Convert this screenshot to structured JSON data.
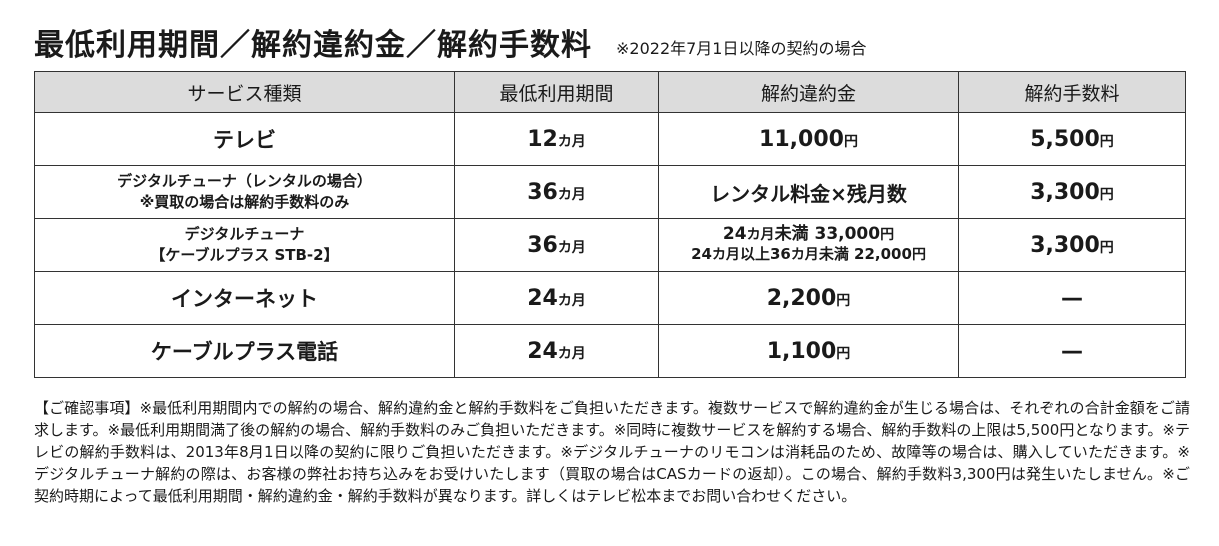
{
  "title": "最低利用期間／解約違約金／解約手数料",
  "note": "※2022年7月1日以降の契約の場合",
  "headers": [
    "サービス種類",
    "最低利用期間",
    "解約違約金",
    "解約手数料"
  ],
  "rows": [
    {
      "service": "テレビ",
      "period_num": "12",
      "period_unit": "カ月",
      "penalty_num": "11,000",
      "penalty_unit": "円",
      "fee_num": "5,500",
      "fee_unit": "円"
    },
    {
      "service_line1": "デジタルチューナ（レンタルの場合）",
      "service_line2": "※買取の場合は解約手数料のみ",
      "period_num": "36",
      "period_unit": "カ月",
      "penalty_text": "レンタル料金×残月数",
      "fee_num": "3,300",
      "fee_unit": "円"
    },
    {
      "service_line1": "デジタルチューナ",
      "service_line2": "【ケーブルプラス STB-2】",
      "period_num": "36",
      "period_unit": "カ月",
      "penalty_l1_prefix": "24",
      "penalty_l1_unit": "カ月",
      "penalty_l1_mid": "未満 ",
      "penalty_l1_num": "33,000",
      "penalty_l1_yen": "円",
      "penalty_l2_a": "24",
      "penalty_l2_unit1": "カ月",
      "penalty_l2_mid": "以上36",
      "penalty_l2_unit2": "カ月",
      "penalty_l2_mid2": "未満 ",
      "penalty_l2_num": "22,000",
      "penalty_l2_yen": "円",
      "fee_num": "3,300",
      "fee_unit": "円"
    },
    {
      "service": "インターネット",
      "period_num": "24",
      "period_unit": "カ月",
      "penalty_num": "2,200",
      "penalty_unit": "円",
      "fee_text": "—"
    },
    {
      "service": "ケーブルプラス電話",
      "period_num": "24",
      "period_unit": "カ月",
      "penalty_num": "1,100",
      "penalty_unit": "円",
      "fee_text": "—"
    }
  ],
  "footer": "【ご確認事項】※最低利用期間内での解約の場合、解約違約金と解約手数料をご負担いただきます。複数サービスで解約違約金が生じる場合は、それぞれの合計金額をご請求します。※最低利用期間満了後の解約の場合、解約手数料のみご負担いただきます。※同時に複数サービスを解約する場合、解約手数料の上限は5,500円となります。※テレビの解約手数料は、2013年8月1日以降の契約に限りご負担いただきます。※デジタルチューナのリモコンは消耗品のため、故障等の場合は、購入していただきます。※デジタルチューナ解約の際は、お客様の弊社お持ち込みをお受けいたします（買取の場合はCASカードの返却）。この場合、解約手数料3,300円は発生いたしません。※ご契約時期によって最低利用期間・解約違約金・解約手数料が異なります。詳しくはテレビ松本までお問い合わせください。"
}
